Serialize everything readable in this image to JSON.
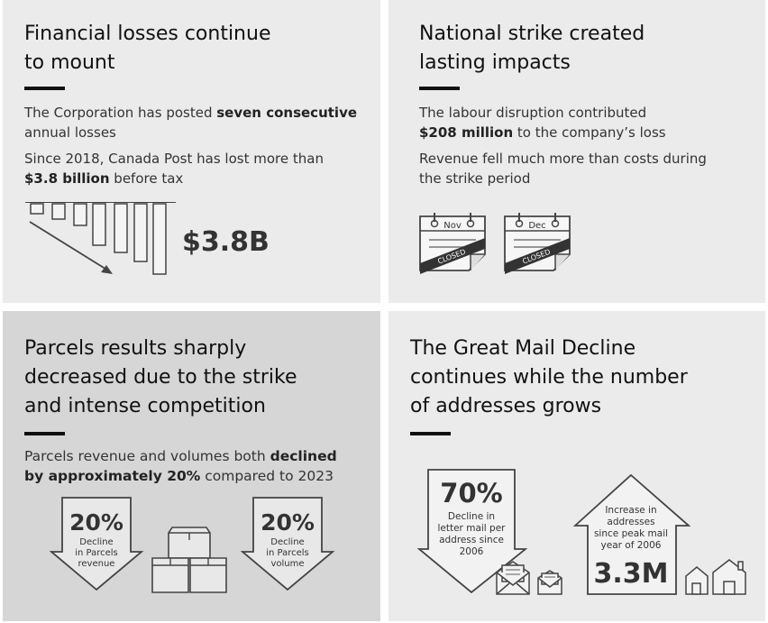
{
  "panels": {
    "financial": {
      "title_line1": "Financial losses continue",
      "title_line2": "to mount",
      "p1_a": "The Corporation has posted ",
      "p1_b": "seven consecutive",
      "p1_c": "annual losses",
      "p2_a": "Since 2018, Canada Post has lost more than",
      "p2_b": "$3.8 billion",
      "p2_c": " before tax",
      "stat": "$3.8B",
      "icon": "declining-bars-icon"
    },
    "strike": {
      "title_line1": "National strike created",
      "title_line2": "lasting impacts",
      "p1_a": "The labour disruption contributed",
      "p1_b": "$208 million",
      "p1_c": " to the company’s loss",
      "p2_a": "Revenue fell much more than costs during",
      "p2_b": "the strike period",
      "calendars": [
        {
          "month": "Nov",
          "stamp": "CLOSED"
        },
        {
          "month": "Dec",
          "stamp": "CLOSED"
        }
      ],
      "icon": "closed-calendar-icon"
    },
    "parcels": {
      "title_line1": "Parcels results sharply",
      "title_line2": "decreased due to the strike",
      "title_line3": "and intense competition",
      "p1_a": "Parcels revenue and volumes both ",
      "p1_b": "declined",
      "p1_c": "by approximately 20%",
      "p1_d": " compared to 2023",
      "arrow_left": {
        "value": "20%",
        "line1": "Decline",
        "line2": "in Parcels",
        "line3": "revenue"
      },
      "arrow_right": {
        "value": "20%",
        "line1": "Decline",
        "line2": "in Parcels",
        "line3": "volume"
      },
      "icon": "parcel-boxes-icon"
    },
    "mail": {
      "title_line1": "The Great Mail Decline",
      "title_line2": "continues while the number",
      "title_line3": "of addresses grows",
      "arrow_down": {
        "value": "70%",
        "line1": "Decline in",
        "line2": "letter mail per",
        "line3": "address since",
        "line4": "2006"
      },
      "arrow_up": {
        "value": "3.3M",
        "line1": "Increase in",
        "line2": "addresses",
        "line3": "since peak mail",
        "line4": "year of 2006"
      },
      "icons": [
        "envelope-icon",
        "house-icon"
      ]
    }
  }
}
